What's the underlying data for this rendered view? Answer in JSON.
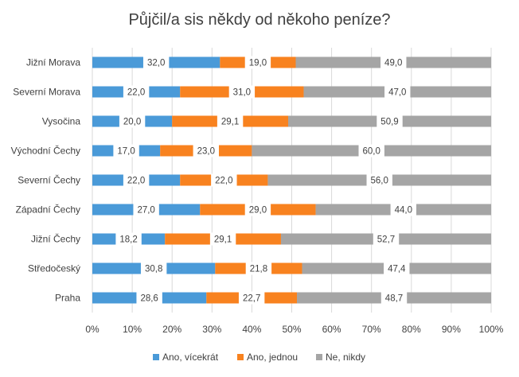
{
  "chart_data": {
    "type": "bar",
    "orientation": "horizontal",
    "stacked": "percent",
    "title": "Půjčil/a sis někdy od někoho peníze?",
    "categories": [
      "Jižní Morava",
      "Severní Morava",
      "Vysočina",
      "Východní  Čechy",
      "Severní  Čechy",
      "Západní Čechy",
      "Jižní Čechy",
      "Středočeský",
      "Praha"
    ],
    "series": [
      {
        "name": "Ano, vícekrát",
        "color": "#4a9ad8",
        "values": [
          32.0,
          22.0,
          20.0,
          17.0,
          22.0,
          27.0,
          18.2,
          30.8,
          28.6
        ],
        "labels": [
          "32,0",
          "22,0",
          "20,0",
          "17,0",
          "22,0",
          "27,0",
          "18,2",
          "30,8",
          "28,6"
        ]
      },
      {
        "name": "Ano, jednou",
        "color": "#f8821f",
        "values": [
          19.0,
          31.0,
          29.1,
          23.0,
          22.0,
          29.0,
          29.1,
          21.8,
          22.7
        ],
        "labels": [
          "19,0",
          "31,0",
          "29,1",
          "23,0",
          "22,0",
          "29,0",
          "29,1",
          "21,8",
          "22,7"
        ]
      },
      {
        "name": "Ne, nikdy",
        "color": "#a5a5a5",
        "values": [
          49.0,
          47.0,
          50.9,
          60.0,
          56.0,
          44.0,
          52.7,
          47.4,
          48.7
        ],
        "labels": [
          "49,0",
          "47,0",
          "50,9",
          "60,0",
          "56,0",
          "44,0",
          "52,7",
          "47,4",
          "48,7"
        ]
      }
    ],
    "xlim": [
      0,
      100
    ],
    "x_ticks": [
      "0%",
      "10%",
      "20%",
      "30%",
      "40%",
      "50%",
      "60%",
      "70%",
      "80%",
      "90%",
      "100%"
    ],
    "grid": true,
    "legend": "bottom"
  }
}
